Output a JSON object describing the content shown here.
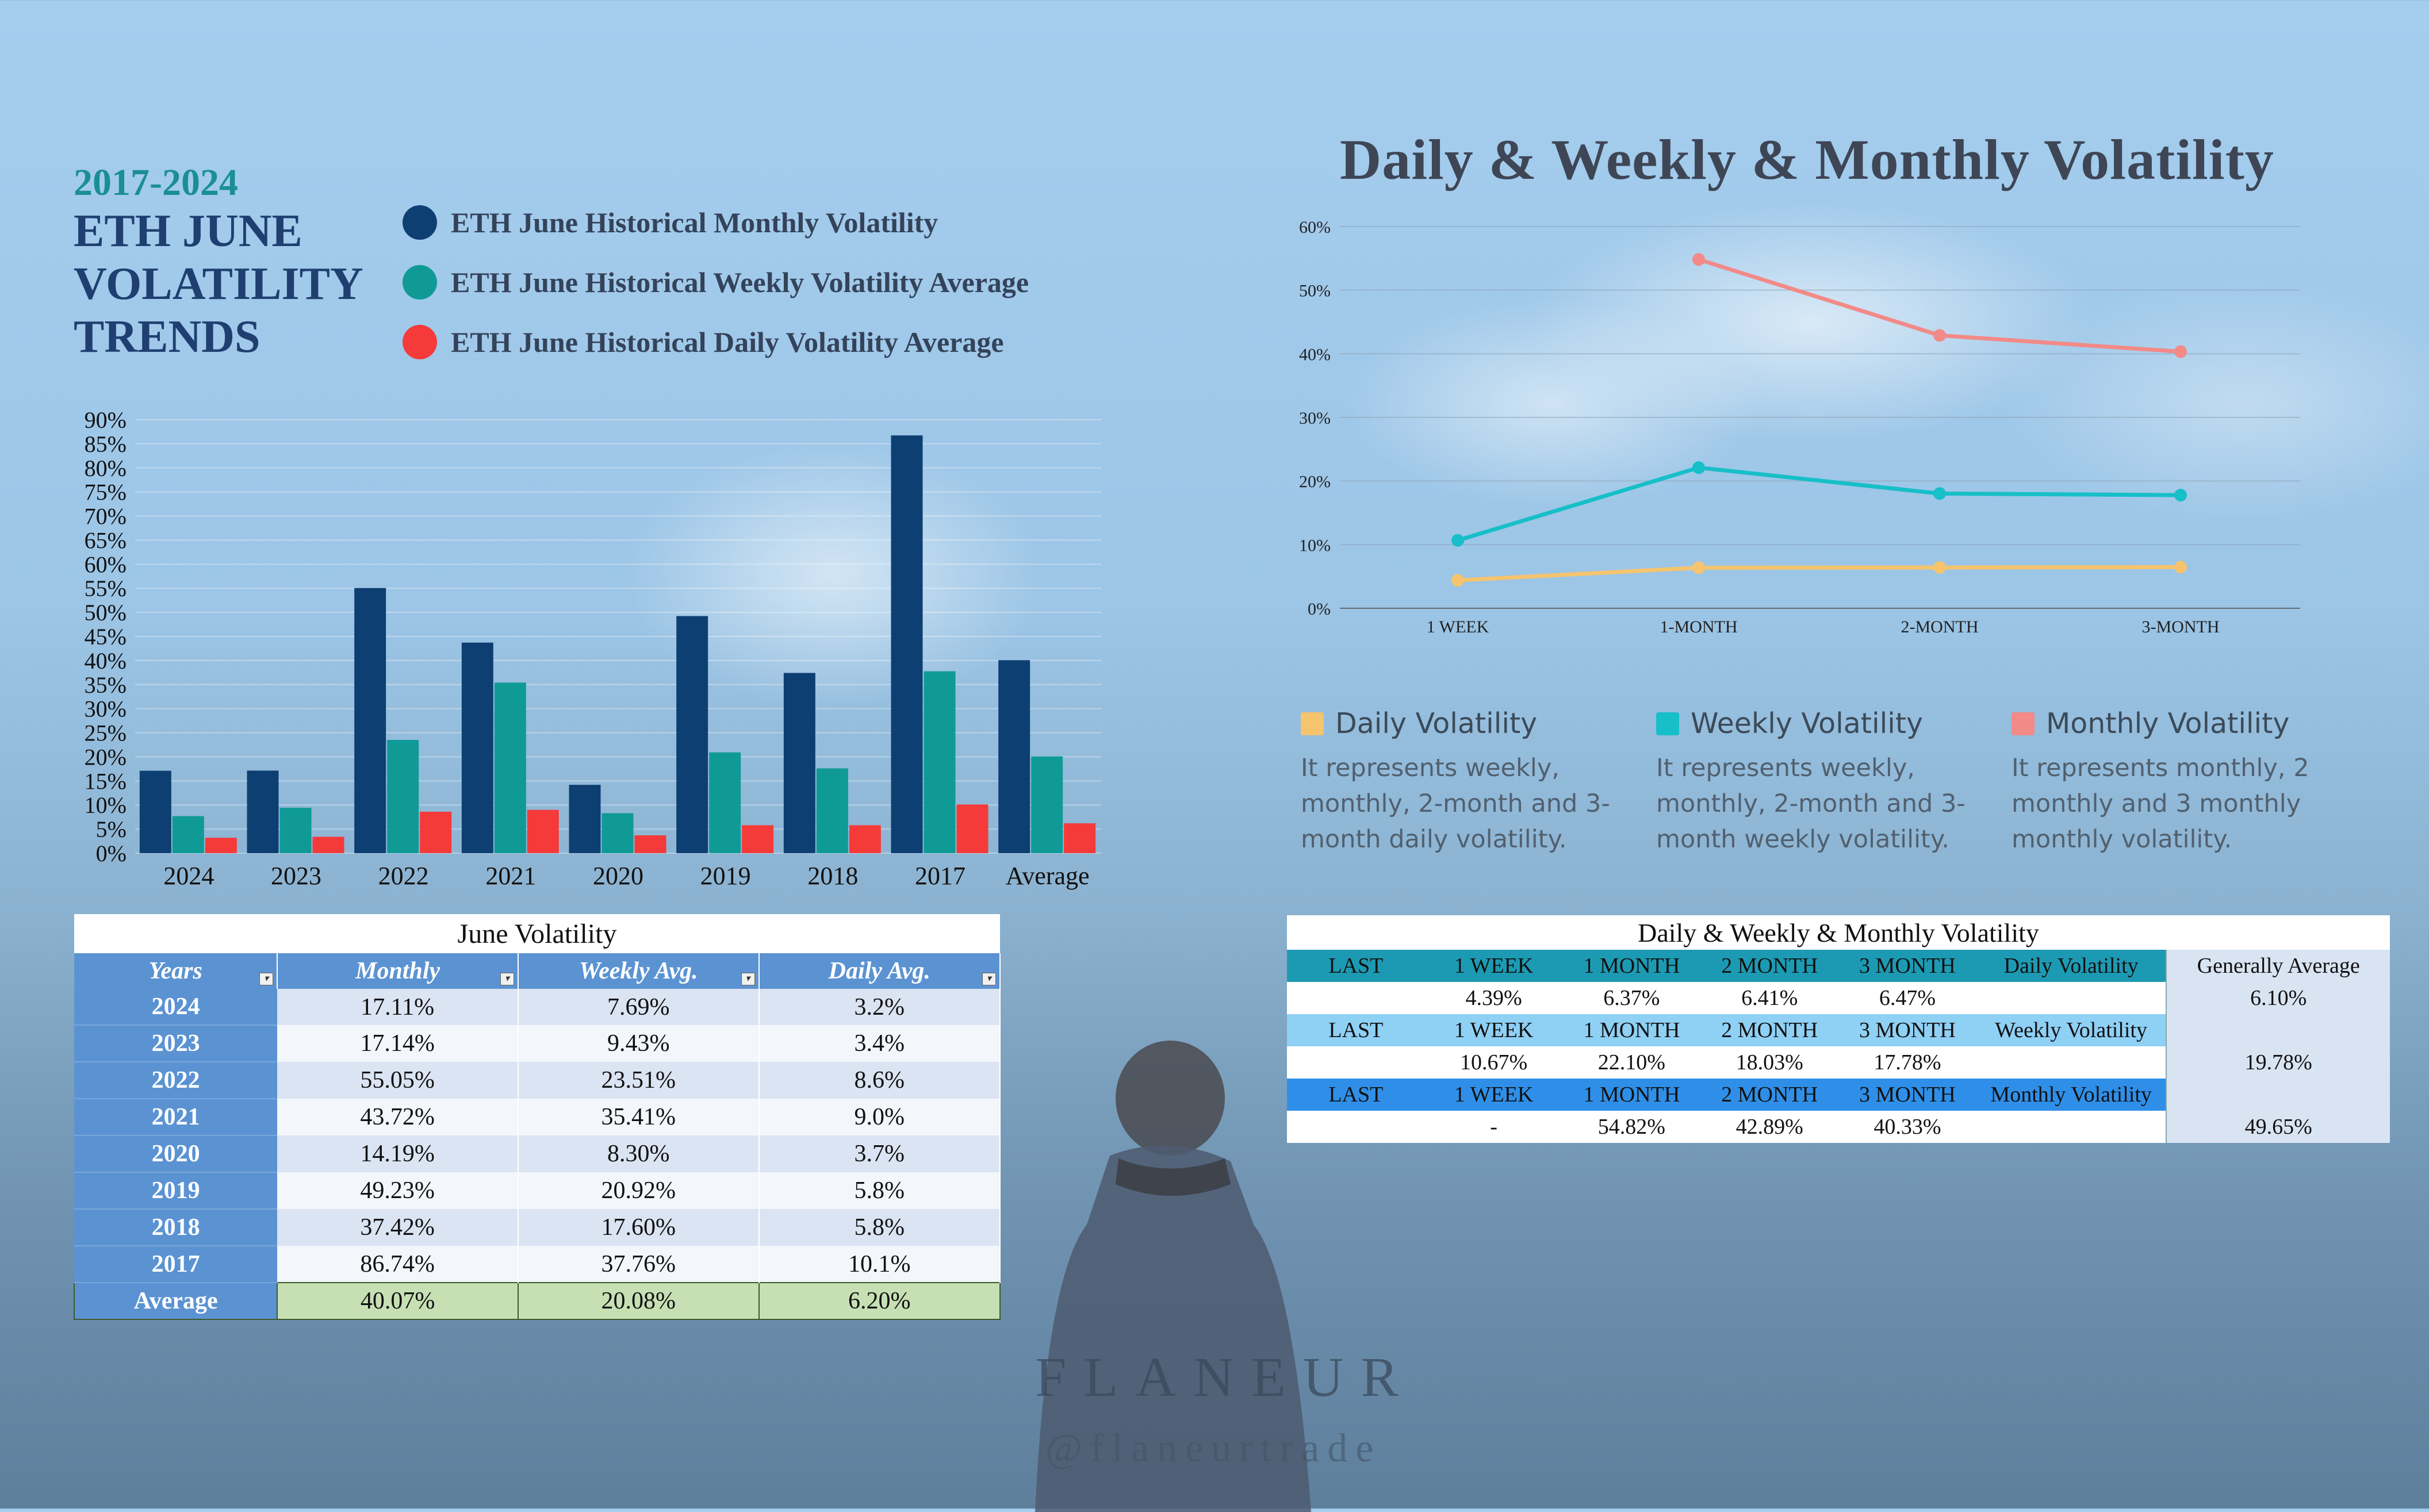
{
  "title": {
    "years": "2017-2024",
    "lines": [
      "ETH JUNE",
      "VOLATILITY",
      "TRENDS"
    ]
  },
  "colors": {
    "monthly": "#0e3f73",
    "weekly": "#0f9a96",
    "daily": "#f53a3a",
    "line_daily": "#f5c46d",
    "line_weekly": "#17bfc8",
    "line_monthly": "#f28a88"
  },
  "chart_data": [
    {
      "type": "bar",
      "title": "ETH June Volatility",
      "categories": [
        "2024",
        "2023",
        "2022",
        "2021",
        "2020",
        "2019",
        "2018",
        "2017",
        "Average"
      ],
      "series": [
        {
          "name": "ETH June Historical Monthly Volatility",
          "values": [
            17.11,
            17.14,
            55.05,
            43.72,
            14.19,
            49.23,
            37.42,
            86.74,
            40.07
          ]
        },
        {
          "name": "ETH June Historical Weekly Volatility Average",
          "values": [
            7.69,
            9.43,
            23.51,
            35.41,
            8.3,
            20.92,
            17.6,
            37.76,
            20.08
          ]
        },
        {
          "name": "ETH June Historical Daily Volatility Average",
          "values": [
            3.2,
            3.4,
            8.6,
            9.0,
            3.7,
            5.8,
            5.8,
            10.1,
            6.2
          ]
        }
      ],
      "ylim": [
        0,
        90
      ],
      "yticks": [
        "0%",
        "5%",
        "10%",
        "15%",
        "20%",
        "25%",
        "30%",
        "35%",
        "40%",
        "45%",
        "50%",
        "55%",
        "60%",
        "65%",
        "70%",
        "75%",
        "80%",
        "85%",
        "90%"
      ],
      "legend": "top"
    },
    {
      "type": "line",
      "title": "Daily & Weekly & Monthly Volatility",
      "categories": [
        "1 WEEK",
        "1-MONTH",
        "2-MONTH",
        "3-MONTH"
      ],
      "series": [
        {
          "name": "Daily Volatility",
          "values": [
            4.39,
            6.37,
            6.41,
            6.47
          ]
        },
        {
          "name": "Weekly Volatility",
          "values": [
            10.67,
            22.1,
            18.03,
            17.78
          ]
        },
        {
          "name": "Monthly Volatility",
          "values": [
            null,
            54.82,
            42.89,
            40.33
          ]
        }
      ],
      "ylim": [
        0,
        60
      ],
      "yticks": [
        "0%",
        "10%",
        "20%",
        "30%",
        "40%",
        "50%",
        "60%"
      ],
      "legend": "bottom"
    }
  ],
  "line_legend": [
    {
      "name": "Daily Volatility",
      "desc": "It represents weekly, monthly, 2-month and 3-month daily volatility."
    },
    {
      "name": "Weekly Volatility",
      "desc": "It represents weekly, monthly, 2-month and 3-month weekly volatility."
    },
    {
      "name": "Monthly Volatility",
      "desc": "It represents monthly, 2 monthly and 3 monthly monthly volatility."
    }
  ],
  "june_table": {
    "caption": "June Volatility",
    "headers": [
      "Years",
      "Monthly",
      "Weekly Avg.",
      "Daily Avg."
    ],
    "rows": [
      [
        "2024",
        "17.11%",
        "7.69%",
        "3.2%"
      ],
      [
        "2023",
        "17.14%",
        "9.43%",
        "3.4%"
      ],
      [
        "2022",
        "55.05%",
        "23.51%",
        "8.6%"
      ],
      [
        "2021",
        "43.72%",
        "35.41%",
        "9.0%"
      ],
      [
        "2020",
        "14.19%",
        "8.30%",
        "3.7%"
      ],
      [
        "2019",
        "49.23%",
        "20.92%",
        "5.8%"
      ],
      [
        "2018",
        "37.42%",
        "17.60%",
        "5.8%"
      ],
      [
        "2017",
        "86.74%",
        "37.76%",
        "10.1%"
      ]
    ],
    "average": [
      "Average",
      "40.07%",
      "20.08%",
      "6.20%"
    ]
  },
  "vol_table": {
    "caption": "Daily & Weekly & Monthly Volatility",
    "rows": [
      [
        "LAST",
        "1 WEEK",
        "1 MONTH",
        "2 MONTH",
        "3 MONTH",
        "Daily Volatility",
        "Generally Average"
      ],
      [
        "",
        "4.39%",
        "6.37%",
        "6.41%",
        "6.47%",
        "",
        "6.10%"
      ],
      [
        "LAST",
        "1 WEEK",
        "1 MONTH",
        "2 MONTH",
        "3 MONTH",
        "Weekly Volatility",
        ""
      ],
      [
        "",
        "10.67%",
        "22.10%",
        "18.03%",
        "17.78%",
        "",
        "19.78%"
      ],
      [
        "LAST",
        "1 WEEK",
        "1 MONTH",
        "2 MONTH",
        "3 MONTH",
        "Monthly Volatility",
        ""
      ],
      [
        "",
        "-",
        "54.82%",
        "42.89%",
        "40.33%",
        "",
        "49.65%"
      ]
    ]
  },
  "branding": {
    "name": "FLANEUR",
    "handle": "@flaneurtrade"
  }
}
